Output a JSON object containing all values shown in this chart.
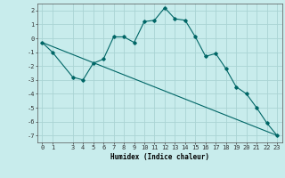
{
  "xlabel": "Humidex (Indice chaleur)",
  "background_color": "#c8ecec",
  "grid_color": "#aad4d4",
  "line_color": "#006666",
  "xlim": [
    -0.5,
    23.5
  ],
  "ylim": [
    -7.5,
    2.5
  ],
  "yticks": [
    -7,
    -6,
    -5,
    -4,
    -3,
    -2,
    -1,
    0,
    1,
    2
  ],
  "xticks": [
    0,
    1,
    3,
    4,
    5,
    6,
    7,
    8,
    9,
    10,
    11,
    12,
    13,
    14,
    15,
    16,
    17,
    18,
    19,
    20,
    21,
    22,
    23
  ],
  "curve1_x": [
    0,
    1,
    3,
    4,
    5,
    6,
    7,
    8,
    9,
    10,
    11,
    12,
    13,
    14,
    15,
    16,
    17,
    18,
    19,
    20,
    21,
    22,
    23
  ],
  "curve1_y": [
    -0.3,
    -1.0,
    -2.8,
    -3.0,
    -1.8,
    -1.5,
    0.1,
    0.1,
    -0.3,
    1.2,
    1.3,
    2.2,
    1.4,
    1.3,
    0.1,
    -1.3,
    -1.1,
    -2.2,
    -3.5,
    -4.0,
    -5.0,
    -6.1,
    -7.0
  ],
  "curve2_x": [
    0,
    23
  ],
  "curve2_y": [
    -0.3,
    -7.0
  ],
  "fontsize_label": 5.5,
  "fontsize_tick": 5.0
}
